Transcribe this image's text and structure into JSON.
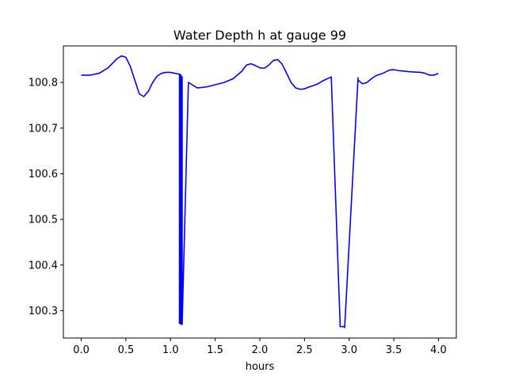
{
  "chart_data": {
    "type": "line",
    "title": "Water Depth h at gauge 99",
    "xlabel": "hours",
    "ylabel": "",
    "xlim": [
      -0.2,
      4.2
    ],
    "ylim": [
      100.24,
      100.88
    ],
    "xticks": [
      0.0,
      0.5,
      1.0,
      1.5,
      2.0,
      2.5,
      3.0,
      3.5,
      4.0
    ],
    "xtick_labels": [
      "0.0",
      "0.5",
      "1.0",
      "1.5",
      "2.0",
      "2.5",
      "3.0",
      "3.5",
      "4.0"
    ],
    "yticks": [
      100.3,
      100.4,
      100.5,
      100.6,
      100.7,
      100.8
    ],
    "ytick_labels": [
      "100.3",
      "100.4",
      "100.5",
      "100.6",
      "100.7",
      "100.8"
    ],
    "grid": false,
    "color": "#0000ff",
    "series": [
      {
        "x": [
          0.0,
          0.1,
          0.2,
          0.3,
          0.4,
          0.45,
          0.5,
          0.55,
          0.6,
          0.65,
          0.7,
          0.75,
          0.8,
          0.85,
          0.9,
          0.95,
          1.0,
          1.05,
          1.1,
          1.1,
          1.11,
          1.11,
          1.12,
          1.12,
          1.13,
          1.13,
          1.2,
          1.3,
          1.4,
          1.5,
          1.6,
          1.7,
          1.8,
          1.85,
          1.9,
          1.95,
          2.0,
          2.05,
          2.1,
          2.15,
          2.2,
          2.25,
          2.3,
          2.35,
          2.4,
          2.45,
          2.5,
          2.55,
          2.6,
          2.65,
          2.7,
          2.8,
          2.9,
          2.95,
          2.95,
          3.1,
          3.1,
          3.15,
          3.2,
          3.25,
          3.3,
          3.35,
          3.4,
          3.45,
          3.5,
          3.55,
          3.6,
          3.7,
          3.8,
          3.85,
          3.9,
          3.95,
          4.0
        ],
        "y": [
          100.816,
          100.816,
          100.82,
          100.832,
          100.852,
          100.858,
          100.855,
          100.835,
          100.805,
          100.775,
          100.769,
          100.78,
          100.8,
          100.814,
          100.82,
          100.822,
          100.822,
          100.82,
          100.818,
          100.272,
          100.818,
          100.272,
          100.815,
          100.27,
          100.812,
          100.27,
          100.8,
          100.788,
          100.79,
          100.795,
          100.8,
          100.808,
          100.825,
          100.838,
          100.841,
          100.837,
          100.832,
          100.831,
          100.838,
          100.848,
          100.85,
          100.84,
          100.82,
          100.8,
          100.788,
          100.785,
          100.786,
          100.79,
          100.793,
          100.797,
          100.803,
          100.812,
          100.265,
          100.265,
          100.263,
          100.81,
          100.805,
          100.797,
          100.8,
          100.808,
          100.815,
          100.818,
          100.822,
          100.827,
          100.828,
          100.826,
          100.825,
          100.823,
          100.822,
          100.82,
          100.816,
          100.816,
          100.82
        ]
      }
    ]
  }
}
